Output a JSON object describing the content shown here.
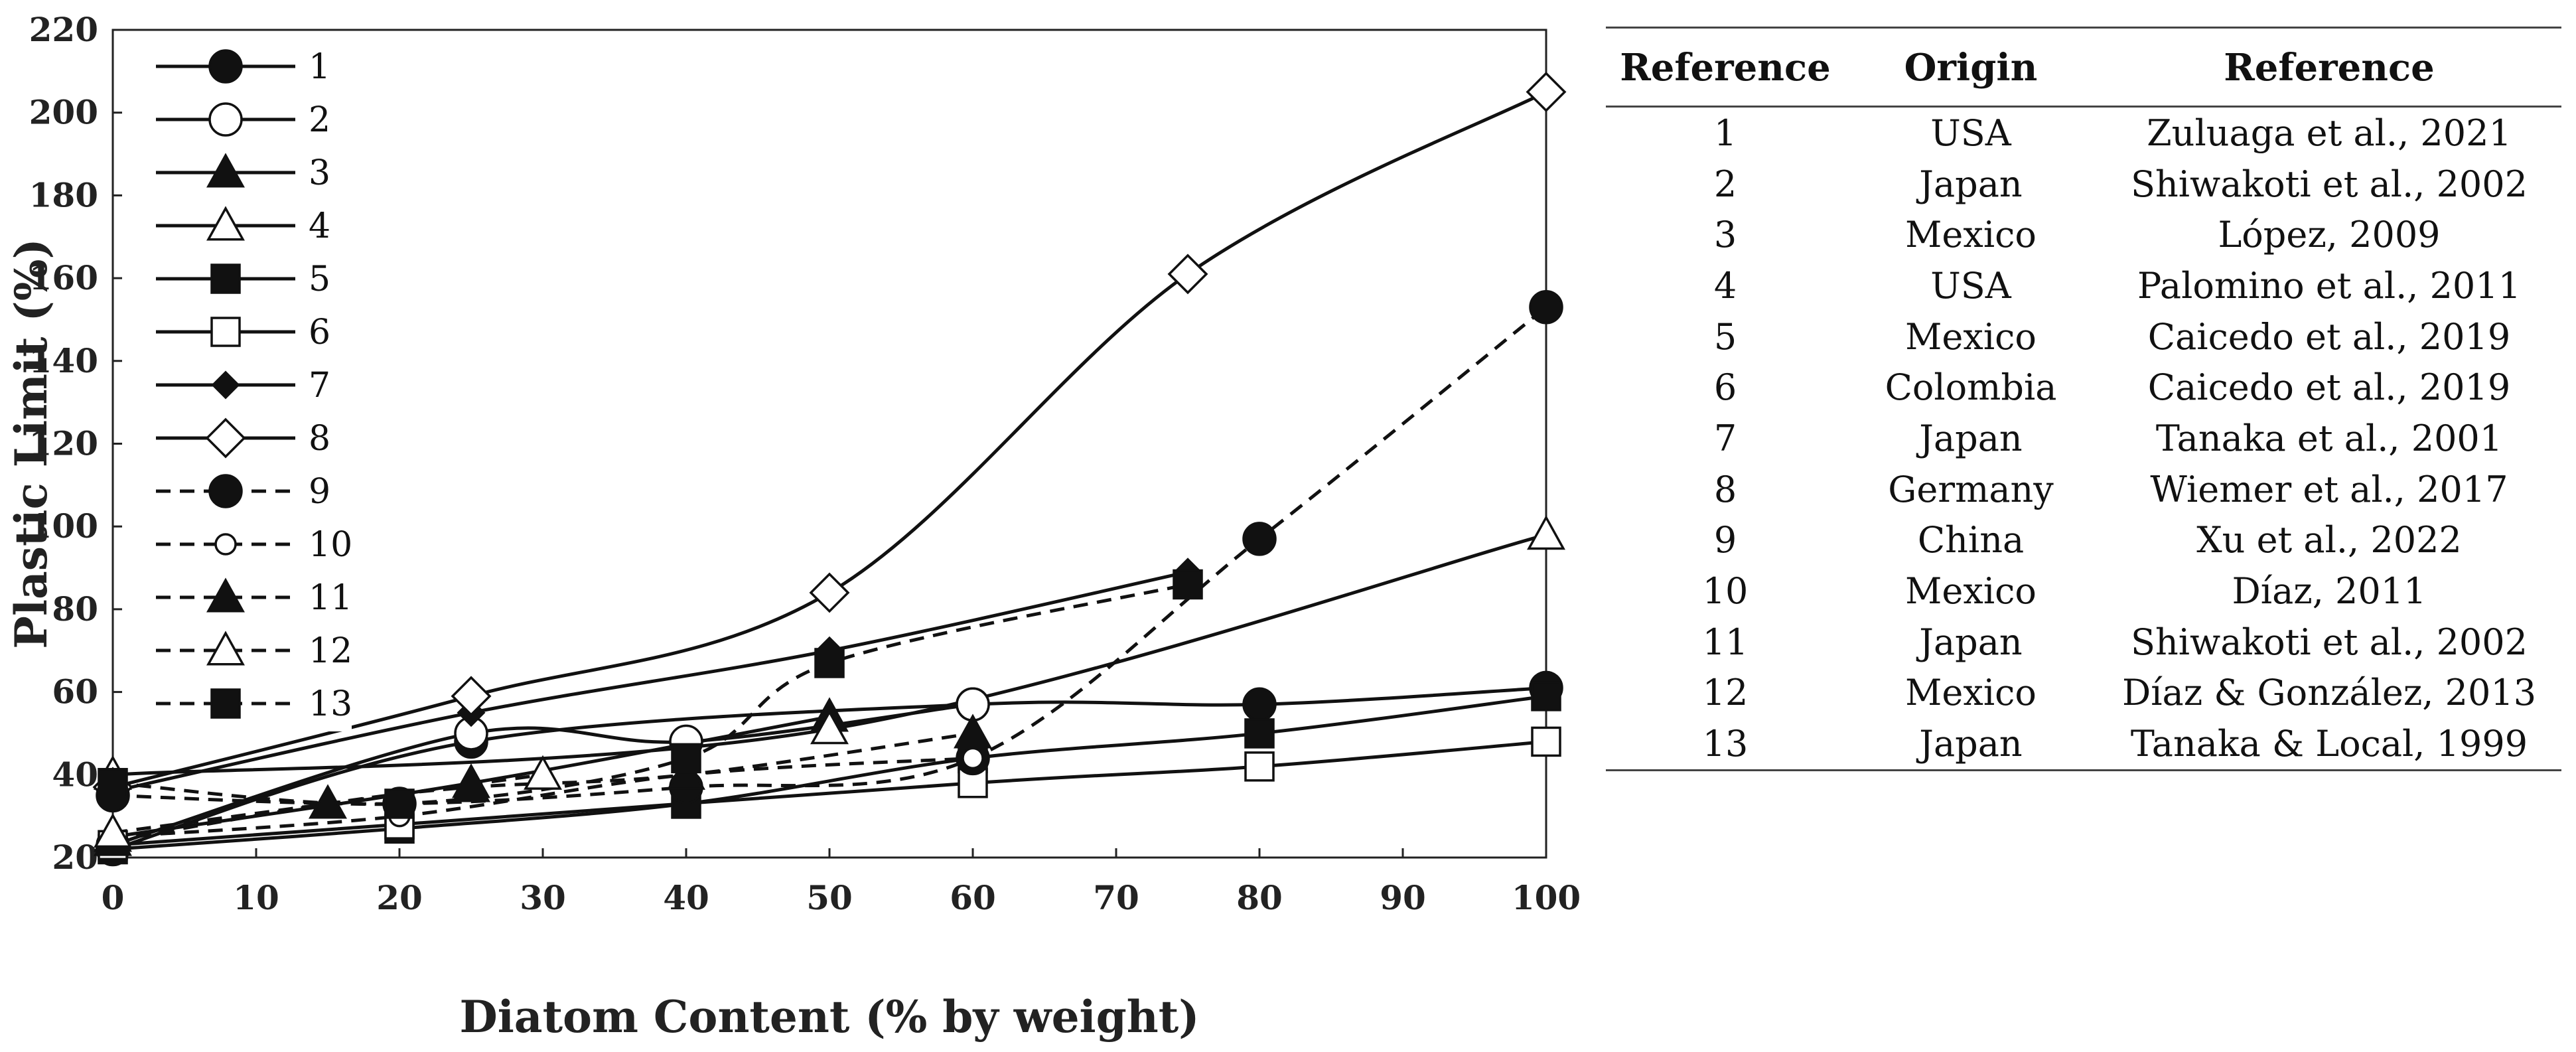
{
  "chart_data": {
    "type": "line",
    "xlabel": "Diatom Content (% by weight)",
    "ylabel": "Plastic Limit (%)",
    "xlim": [
      0,
      100
    ],
    "ylim": [
      20,
      220
    ],
    "xticks": [
      "0",
      "10",
      "20",
      "30",
      "40",
      "50",
      "60",
      "70",
      "80",
      "90",
      "100"
    ],
    "yticks": [
      "20",
      "40",
      "60",
      "80",
      "100",
      "120",
      "140",
      "160",
      "180",
      "200",
      "220"
    ],
    "legend_position": "top-left",
    "series": [
      {
        "name": "1",
        "marker": "circle",
        "filled": true,
        "dashed": false,
        "x": [
          0,
          25,
          60,
          80,
          100
        ],
        "y": [
          22,
          48,
          57,
          57,
          61
        ]
      },
      {
        "name": "2",
        "marker": "circle",
        "filled": false,
        "dashed": false,
        "x": [
          0,
          25,
          40,
          60
        ],
        "y": [
          23,
          50,
          48,
          57
        ]
      },
      {
        "name": "3",
        "marker": "triangle",
        "filled": true,
        "dashed": false,
        "x": [
          0,
          25,
          50
        ],
        "y": [
          25,
          38,
          54
        ]
      },
      {
        "name": "4",
        "marker": "triangle",
        "filled": false,
        "dashed": false,
        "x": [
          0,
          50,
          100
        ],
        "y": [
          40,
          51,
          98
        ]
      },
      {
        "name": "5",
        "marker": "square",
        "filled": true,
        "dashed": false,
        "x": [
          0,
          20,
          40,
          60,
          80,
          100
        ],
        "y": [
          22,
          27,
          33,
          44,
          50,
          59
        ]
      },
      {
        "name": "6",
        "marker": "square",
        "filled": false,
        "dashed": false,
        "x": [
          0,
          20,
          60,
          80,
          100
        ],
        "y": [
          23,
          28,
          38,
          42,
          48
        ]
      },
      {
        "name": "7",
        "marker": "diamond-small",
        "filled": true,
        "dashed": false,
        "x": [
          0,
          25,
          50,
          75
        ],
        "y": [
          36,
          55,
          70,
          89
        ]
      },
      {
        "name": "8",
        "marker": "diamond",
        "filled": false,
        "dashed": false,
        "x": [
          0,
          25,
          50,
          75,
          100
        ],
        "y": [
          37,
          59,
          84,
          161,
          205
        ]
      },
      {
        "name": "9",
        "marker": "circle",
        "filled": true,
        "dashed": true,
        "x": [
          0,
          20,
          40,
          60,
          80,
          100
        ],
        "y": [
          35,
          33,
          37,
          44,
          97,
          153
        ]
      },
      {
        "name": "10",
        "marker": "circle-small",
        "filled": false,
        "dashed": true,
        "x": [
          0,
          20,
          40,
          60
        ],
        "y": [
          25,
          30,
          40,
          44
        ]
      },
      {
        "name": "11",
        "marker": "triangle",
        "filled": true,
        "dashed": true,
        "x": [
          0,
          15,
          25,
          40,
          60
        ],
        "y": [
          24,
          33,
          37,
          40,
          50
        ]
      },
      {
        "name": "12",
        "marker": "triangle",
        "filled": false,
        "dashed": true,
        "x": [
          0,
          30
        ],
        "y": [
          26,
          40
        ]
      },
      {
        "name": "13",
        "marker": "square",
        "filled": true,
        "dashed": true,
        "x": [
          0,
          20,
          40,
          50,
          75
        ],
        "y": [
          38,
          33,
          44,
          67,
          86
        ]
      }
    ]
  },
  "table": {
    "headers": [
      "Reference",
      "Origin",
      "Reference"
    ],
    "rows": [
      [
        "1",
        "USA",
        "Zuluaga et al., 2021"
      ],
      [
        "2",
        "Japan",
        "Shiwakoti et al., 2002"
      ],
      [
        "3",
        "Mexico",
        "López, 2009"
      ],
      [
        "4",
        "USA",
        "Palomino et al., 2011"
      ],
      [
        "5",
        "Mexico",
        "Caicedo et al., 2019"
      ],
      [
        "6",
        "Colombia",
        "Caicedo et al., 2019"
      ],
      [
        "7",
        "Japan",
        "Tanaka et al., 2001"
      ],
      [
        "8",
        "Germany",
        "Wiemer et al., 2017"
      ],
      [
        "9",
        "China",
        "Xu et al., 2022"
      ],
      [
        "10",
        "Mexico",
        "Díaz, 2011"
      ],
      [
        "11",
        "Japan",
        "Shiwakoti et al., 2002"
      ],
      [
        "12",
        "Mexico",
        "Díaz & González, 2013"
      ],
      [
        "13",
        "Japan",
        "Tanaka & Local, 1999"
      ]
    ]
  }
}
